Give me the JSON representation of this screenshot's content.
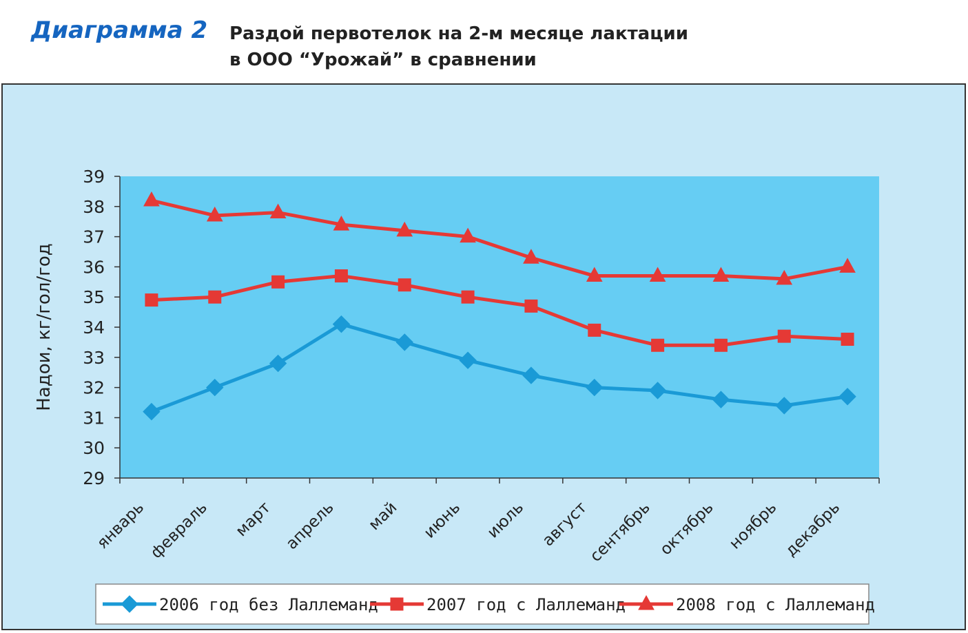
{
  "header": {
    "diagram_label": "Диаграмма 2",
    "title_line1": "Раздой первотелок на 2-м месяце лактации",
    "title_line2": "в ООО “Урожай” в сравнении"
  },
  "chart_data": {
    "type": "line",
    "title": "Раздой первотелок на 2-м месяце лактации в ООО “Урожай” в сравнении",
    "xlabel": "",
    "ylabel": "Надои, кг/гол/год",
    "ylim": [
      29,
      39
    ],
    "yticks": [
      29,
      30,
      31,
      32,
      33,
      34,
      35,
      36,
      37,
      38,
      39
    ],
    "grid": false,
    "legend_position": "bottom",
    "categories": [
      "январь",
      "февраль",
      "март",
      "апрель",
      "май",
      "июнь",
      "июль",
      "август",
      "сентябрь",
      "октябрь",
      "ноябрь",
      "декабрь"
    ],
    "series": [
      {
        "name": "2006 год без Лаллеманд",
        "color": "#1a9ad6",
        "marker": "diamond",
        "values": [
          31.2,
          32.0,
          32.8,
          34.1,
          33.5,
          32.9,
          32.4,
          32.0,
          31.9,
          31.6,
          31.4,
          31.7
        ]
      },
      {
        "name": "2007 год с Лаллеманд",
        "color": "#e53935",
        "marker": "square",
        "values": [
          34.9,
          35.0,
          35.5,
          35.7,
          35.4,
          35.0,
          34.7,
          33.9,
          33.4,
          33.4,
          33.7,
          33.6
        ]
      },
      {
        "name": "2008 год с Лаллеманд",
        "color": "#e53935",
        "marker": "triangle",
        "values": [
          38.2,
          37.7,
          37.8,
          37.4,
          37.2,
          37.0,
          36.3,
          35.7,
          35.7,
          35.7,
          35.6,
          36.0
        ]
      }
    ]
  }
}
